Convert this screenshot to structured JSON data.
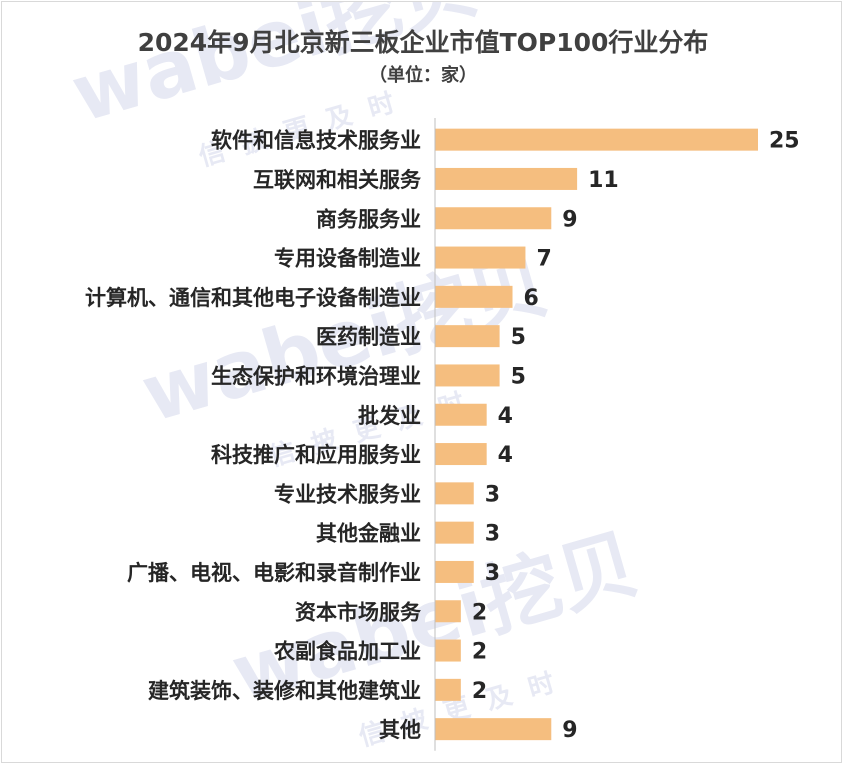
{
  "chart_data": {
    "type": "bar",
    "orientation": "horizontal",
    "title": "2024年9月北京新三板企业市值TOP100行业分布",
    "subtitle": "（单位：家）",
    "categories": [
      "软件和信息技术服务业",
      "互联网和相关服务",
      "商务服务业",
      "专用设备制造业",
      "计算机、通信和其他电子设备制造业",
      "医药制造业",
      "生态保护和环境治理业",
      "批发业",
      "科技推广和应用服务业",
      "专业技术服务业",
      "其他金融业",
      "广播、电视、电影和录音制作业",
      "资本市场服务",
      "农副食品加工业",
      "建筑装饰、装修和其他建筑业",
      "其他"
    ],
    "values": [
      25,
      11,
      9,
      7,
      6,
      5,
      5,
      4,
      4,
      3,
      3,
      3,
      2,
      2,
      2,
      9
    ],
    "data_labels": [
      "25",
      "11",
      "9",
      "7",
      "6",
      "5",
      "5",
      "4",
      "4",
      "3",
      "3",
      "3",
      "2",
      "2",
      "2",
      "9"
    ],
    "xlim": [
      0,
      25
    ],
    "grid": false,
    "legend": "none",
    "bar_color": "#f5be7f",
    "axis_color": "#bfbfbf"
  },
  "watermark": {
    "brand": "wabei挖贝",
    "tagline": "信披更及时",
    "color": "#e7e9f4"
  }
}
